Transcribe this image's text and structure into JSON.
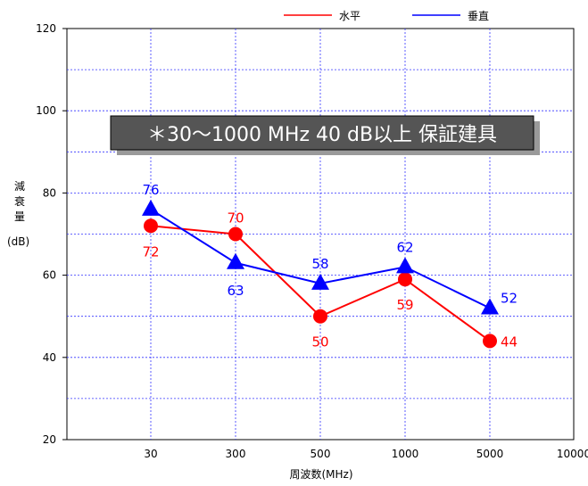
{
  "chart_data": {
    "type": "line",
    "categories": [
      "30",
      "300",
      "500",
      "1000",
      "5000",
      "10000"
    ],
    "series": [
      {
        "name": "水平",
        "color": "#ff0000",
        "marker": "circle",
        "values": [
          72,
          70,
          50,
          59,
          44,
          null
        ]
      },
      {
        "name": "垂直",
        "color": "#0000ff",
        "marker": "triangle",
        "values": [
          76,
          63,
          58,
          62,
          52,
          null
        ]
      }
    ],
    "y_ticks": [
      "20",
      "40",
      "60",
      "80",
      "100",
      "120"
    ],
    "ylim": [
      20,
      120
    ],
    "grid": true,
    "legend": "top-right",
    "xlabel": "周波数(MHz)",
    "ylabel": "減衰量",
    "ylabel_unit": "(dB)",
    "annotation": "＊30～1000 MHz 40 dB以上 保証建具"
  }
}
